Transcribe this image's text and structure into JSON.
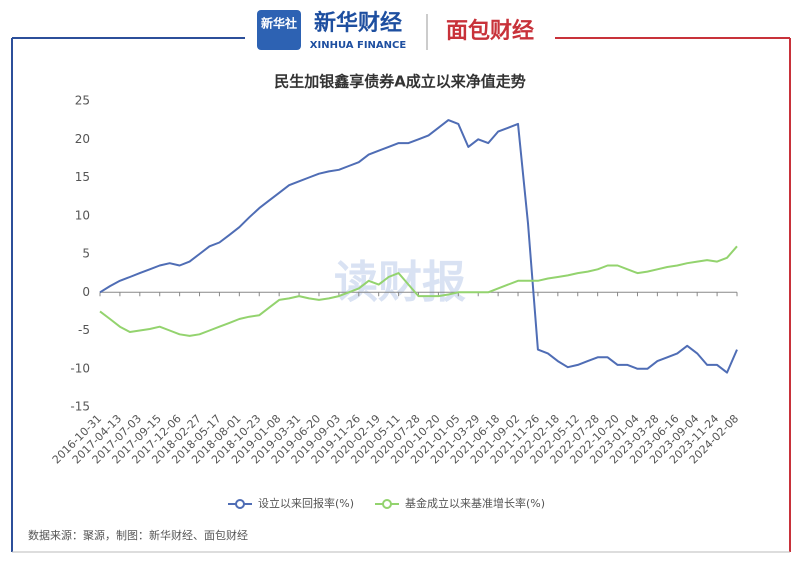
{
  "header": {
    "logo_badge": "新华社",
    "brand": "新华财经",
    "brand_en": "XINHUA FINANCE",
    "partner": "面包财经"
  },
  "watermark": "读财报",
  "source": "数据来源：聚源，制图：新华财经、面包财经",
  "chart_data": {
    "type": "line",
    "title": "民生加银鑫享债券A成立以来净值走势",
    "categories": [
      "2016-10-31",
      null,
      "2017-04-13",
      null,
      "2017-07-03",
      null,
      "2017-09-15",
      null,
      "2017-12-06",
      null,
      "2018-02-27",
      null,
      "2018-05-17",
      null,
      "2018-08-01",
      null,
      "2018-10-23",
      null,
      "2019-01-08",
      null,
      "2019-03-31",
      null,
      "2019-06-20",
      null,
      "2019-09-03",
      null,
      "2019-11-26",
      null,
      "2020-02-19",
      null,
      "2020-05-11",
      null,
      "2020-07-28",
      null,
      "2020-10-20",
      null,
      "2021-01-05",
      null,
      "2021-03-29",
      null,
      "2021-06-18",
      null,
      "2021-09-02",
      null,
      "2021-11-26",
      null,
      "2022-02-18",
      null,
      "2022-05-12",
      null,
      "2022-07-28",
      null,
      "2022-10-20",
      null,
      "2023-01-04",
      null,
      "2023-03-28",
      null,
      "2023-06-16",
      null,
      "2023-09-04",
      null,
      "2023-11-24",
      null,
      "2024-02-08"
    ],
    "series": [
      {
        "name": "设立以来回报率(%)",
        "color": "#4f6db5",
        "values": [
          0,
          0.8,
          1.5,
          2,
          2.5,
          3,
          3.5,
          3.8,
          3.5,
          4,
          5,
          6,
          6.5,
          7.5,
          8.5,
          9.8,
          11,
          12,
          13,
          14,
          14.5,
          15,
          15.5,
          15.8,
          16,
          16.5,
          17,
          18,
          18.5,
          19,
          19.5,
          19.5,
          20,
          20.5,
          21.5,
          22.5,
          22,
          19,
          20,
          19.5,
          21,
          21.5,
          22,
          9,
          -7.5,
          -8,
          -9,
          -9.8,
          -9.5,
          -9,
          -8.5,
          -8.5,
          -9.5,
          -9.5,
          -10,
          -10,
          -9,
          -8.5,
          -8,
          -7,
          -8,
          -9.5,
          -9.5,
          -10.5,
          -7.5
        ]
      },
      {
        "name": "基金成立以来基准增长率(%)",
        "color": "#93d36e",
        "values": [
          -2.5,
          -3.5,
          -4.5,
          -5.2,
          -5,
          -4.8,
          -4.5,
          -5,
          -5.5,
          -5.7,
          -5.5,
          -5,
          -4.5,
          -4,
          -3.5,
          -3.2,
          -3,
          -2,
          -1,
          -0.8,
          -0.5,
          -0.8,
          -1,
          -0.8,
          -0.5,
          0,
          0.5,
          1.5,
          1,
          2,
          2.5,
          1,
          -0.5,
          -0.5,
          -0.5,
          -0.3,
          0,
          0,
          0,
          0,
          0.5,
          1,
          1.5,
          1.5,
          1.5,
          1.8,
          2,
          2.2,
          2.5,
          2.7,
          3,
          3.5,
          3.5,
          3,
          2.5,
          2.7,
          3,
          3.3,
          3.5,
          3.8,
          4,
          4.2,
          4,
          4.5,
          6
        ]
      }
    ],
    "ylim": [
      -15,
      25
    ],
    "yticks": [
      25,
      20,
      15,
      10,
      5,
      0,
      -5,
      -10,
      -15
    ],
    "grid": false,
    "legend": "bottom"
  }
}
